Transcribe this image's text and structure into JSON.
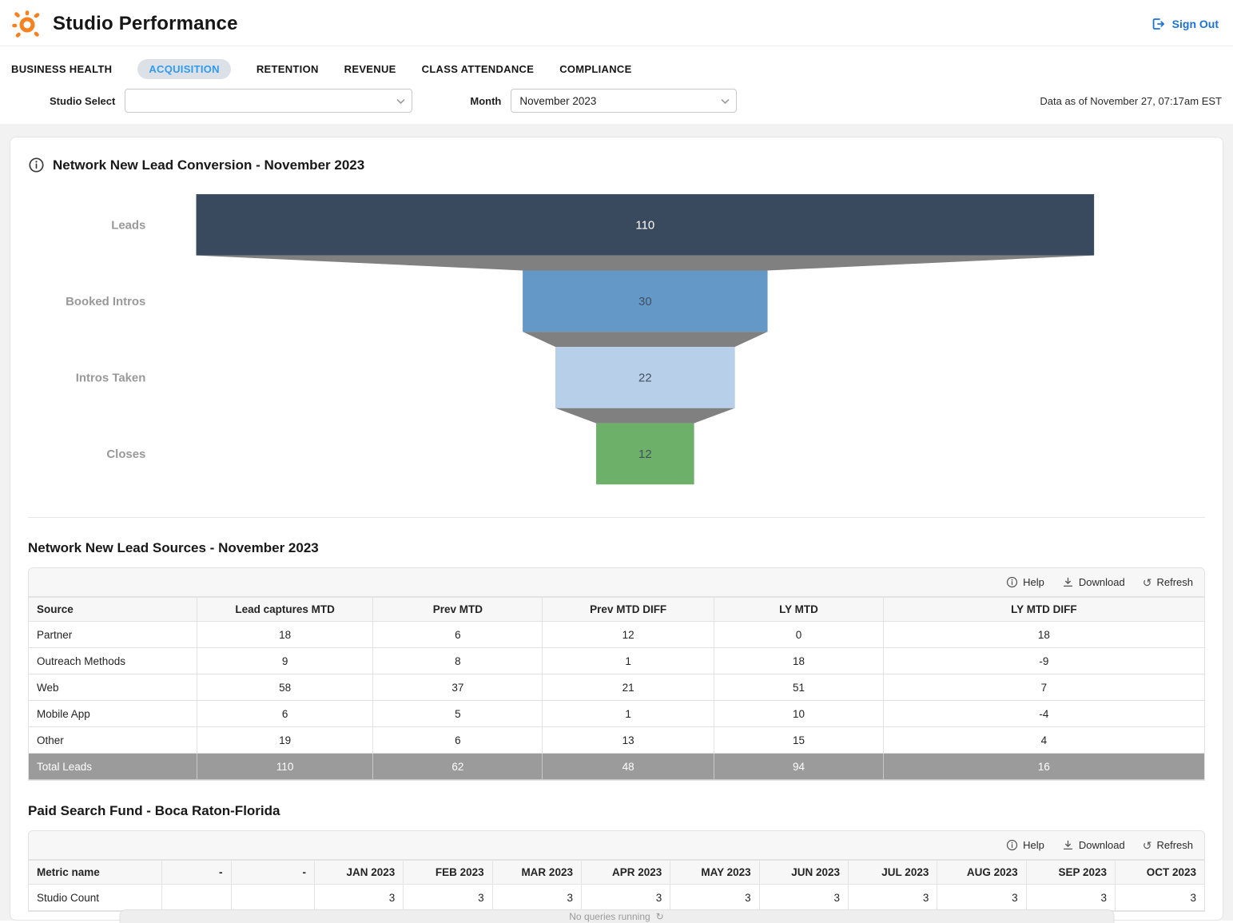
{
  "header": {
    "title": "Studio Performance",
    "sign_out": "Sign Out",
    "brand_color": "#f6821f",
    "link_color": "#1d72d9"
  },
  "tabs": [
    {
      "label": "BUSINESS HEALTH",
      "active": false
    },
    {
      "label": "ACQUISITION",
      "active": true
    },
    {
      "label": "RETENTION",
      "active": false
    },
    {
      "label": "REVENUE",
      "active": false
    },
    {
      "label": "CLASS ATTENDANCE",
      "active": false
    },
    {
      "label": "COMPLIANCE",
      "active": false
    }
  ],
  "filters": {
    "studio_select_label": "Studio Select",
    "studio_select_value": "",
    "month_label": "Month",
    "month_value": "November 2023",
    "data_as_of": "Data as of November 27, 07:17am EST"
  },
  "chart_data": {
    "type": "funnel",
    "title": "Network New Lead Conversion - November 2023",
    "categories": [
      "Leads",
      "Booked Intros",
      "Intros Taken",
      "Closes"
    ],
    "values": [
      110,
      30,
      22,
      12
    ],
    "bar_colors": [
      "#3a4a5e",
      "#6498c6",
      "#b7cfe8",
      "#6db069"
    ],
    "value_label_colors": [
      "#ffffff",
      "#42505e",
      "#42505e",
      "#42505e"
    ],
    "connector_color": "#808080",
    "category_label_color": "#999999",
    "legend_position": "none",
    "grid": false
  },
  "lead_sources_table": {
    "title": "Network New Lead Sources - November 2023",
    "toolbar": {
      "help": "Help",
      "download": "Download",
      "refresh": "Refresh"
    },
    "columns": [
      "Source",
      "Lead captures MTD",
      "Prev MTD",
      "Prev MTD DIFF",
      "LY MTD",
      "LY MTD DIFF"
    ],
    "col_widths": [
      "14.3%",
      "15.0%",
      "14.4%",
      "14.6%",
      "14.4%",
      "27.3%"
    ],
    "rows": [
      [
        "Partner",
        "18",
        "6",
        "12",
        "0",
        "18"
      ],
      [
        "Outreach Methods",
        "9",
        "8",
        "1",
        "18",
        "-9"
      ],
      [
        "Web",
        "58",
        "37",
        "21",
        "51",
        "7"
      ],
      [
        "Mobile App",
        "6",
        "5",
        "1",
        "10",
        "-4"
      ],
      [
        "Other",
        "19",
        "6",
        "13",
        "15",
        "4"
      ]
    ],
    "total_row": [
      "Total Leads",
      "110",
      "62",
      "48",
      "94",
      "16"
    ]
  },
  "paid_search_table": {
    "title": "Paid Search Fund - Boca Raton-Florida",
    "toolbar": {
      "help": "Help",
      "download": "Download",
      "refresh": "Refresh"
    },
    "columns": [
      "Metric name",
      "-",
      "-",
      "JAN 2023",
      "FEB 2023",
      "MAR 2023",
      "APR 2023",
      "MAY 2023",
      "JUN 2023",
      "JUL 2023",
      "AUG 2023",
      "SEP 2023",
      "OCT 2023"
    ],
    "col_widths": [
      "11.3%",
      "5.9%",
      "7.1%",
      "7.57%",
      "7.57%",
      "7.57%",
      "7.57%",
      "7.57%",
      "7.57%",
      "7.57%",
      "7.57%",
      "7.57%",
      "7.57%"
    ],
    "rows": [
      [
        "Studio Count",
        "",
        "",
        "3",
        "3",
        "3",
        "3",
        "3",
        "3",
        "3",
        "3",
        "3",
        "3"
      ]
    ]
  },
  "status_bar": {
    "text": "No queries running"
  }
}
